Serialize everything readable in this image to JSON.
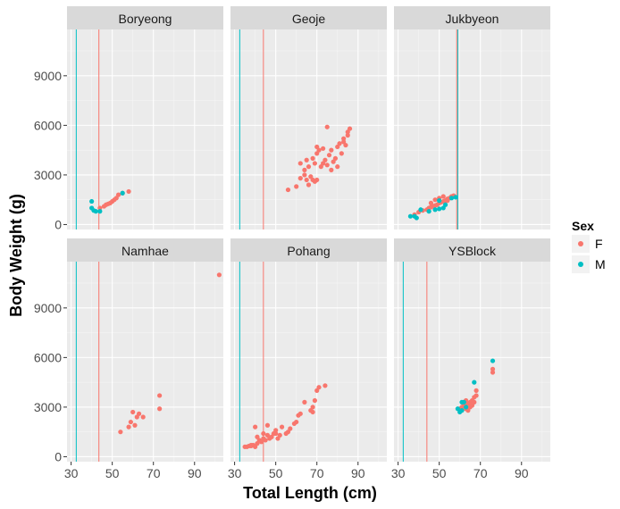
{
  "chart_data": {
    "type": "scatter",
    "layout": "facet_wrap 2x3",
    "xlabel": "Total Length (cm)",
    "ylabel": "Body Weight (g)",
    "xlim": [
      28,
      104
    ],
    "ylim": [
      -300,
      11800
    ],
    "x_ticks": [
      30,
      50,
      70,
      90
    ],
    "y_ticks": [
      0,
      3000,
      6000,
      9000
    ],
    "grid": true,
    "legend": {
      "title": "Sex",
      "position": "right",
      "entries": [
        {
          "label": "F",
          "color": "#F8766D"
        },
        {
          "label": "M",
          "color": "#00BFC4"
        }
      ]
    },
    "panels": [
      {
        "title": "Boryeong",
        "vlines": [
          {
            "x": 32.5,
            "color": "#00BFC4"
          },
          {
            "x": 43.5,
            "color": "#F8766D"
          }
        ],
        "F": [
          [
            44,
            1000
          ],
          [
            46,
            1100
          ],
          [
            47,
            1200
          ],
          [
            48,
            1250
          ],
          [
            49,
            1300
          ],
          [
            50,
            1400
          ],
          [
            51,
            1500
          ],
          [
            52,
            1600
          ],
          [
            53,
            1800
          ],
          [
            55,
            1900
          ],
          [
            58,
            2000
          ]
        ],
        "M": [
          [
            40,
            1400
          ],
          [
            40,
            1000
          ],
          [
            41,
            850
          ],
          [
            42,
            800
          ],
          [
            44,
            800
          ],
          [
            55,
            1900
          ]
        ]
      },
      {
        "title": "Geoje",
        "vlines": [
          {
            "x": 32.5,
            "color": "#00BFC4"
          },
          {
            "x": 44,
            "color": "#F8766D"
          }
        ],
        "F": [
          [
            56,
            2100
          ],
          [
            60,
            2300
          ],
          [
            62,
            2800
          ],
          [
            64,
            3000
          ],
          [
            65,
            2700
          ],
          [
            66,
            2400
          ],
          [
            67,
            2900
          ],
          [
            68,
            2700
          ],
          [
            69,
            2600
          ],
          [
            70,
            2700
          ],
          [
            62,
            3700
          ],
          [
            64,
            3300
          ],
          [
            65,
            3900
          ],
          [
            66,
            3500
          ],
          [
            68,
            4000
          ],
          [
            70,
            4300
          ],
          [
            71,
            4500
          ],
          [
            72,
            3500
          ],
          [
            73,
            3700
          ],
          [
            74,
            3900
          ],
          [
            75,
            3600
          ],
          [
            76,
            4200
          ],
          [
            77,
            4500
          ],
          [
            78,
            3800
          ],
          [
            79,
            4000
          ],
          [
            80,
            3500
          ],
          [
            81,
            4900
          ],
          [
            82,
            4300
          ],
          [
            83,
            5000
          ],
          [
            84,
            4800
          ],
          [
            85,
            5600
          ],
          [
            86,
            5800
          ],
          [
            75,
            5900
          ],
          [
            70,
            4700
          ],
          [
            73,
            4600
          ],
          [
            69,
            3700
          ],
          [
            77,
            3300
          ],
          [
            80,
            4700
          ],
          [
            83,
            5200
          ],
          [
            85,
            5400
          ]
        ],
        "M": []
      },
      {
        "title": "Jukbyeon",
        "vlines": [
          {
            "x": 59,
            "color": "#00BFC4"
          },
          {
            "x": 58.5,
            "color": "#F8766D"
          }
        ],
        "F": [
          [
            38,
            600
          ],
          [
            40,
            750
          ],
          [
            42,
            850
          ],
          [
            44,
            900
          ],
          [
            45,
            1000
          ],
          [
            46,
            1050
          ],
          [
            47,
            1100
          ],
          [
            48,
            1150
          ],
          [
            49,
            1200
          ],
          [
            50,
            1300
          ],
          [
            51,
            1350
          ],
          [
            52,
            1400
          ],
          [
            53,
            1450
          ],
          [
            54,
            1550
          ],
          [
            55,
            1600
          ],
          [
            56,
            1700
          ],
          [
            57,
            1750
          ],
          [
            50,
            1600
          ],
          [
            52,
            1700
          ],
          [
            48,
            1500
          ],
          [
            46,
            1300
          ],
          [
            54,
            1450
          ]
        ],
        "M": [
          [
            36,
            500
          ],
          [
            38,
            500
          ],
          [
            39,
            400
          ],
          [
            41,
            900
          ],
          [
            45,
            800
          ],
          [
            48,
            900
          ],
          [
            50,
            950
          ],
          [
            52,
            1000
          ],
          [
            53,
            1200
          ],
          [
            56,
            1600
          ],
          [
            58,
            1650
          ],
          [
            50,
            1450
          ]
        ]
      },
      {
        "title": "Namhae",
        "vlines": [
          {
            "x": 32.5,
            "color": "#00BFC4"
          },
          {
            "x": 43.5,
            "color": "#F8766D"
          }
        ],
        "F": [
          [
            54,
            1500
          ],
          [
            58,
            1800
          ],
          [
            59,
            2100
          ],
          [
            60,
            2700
          ],
          [
            61,
            1900
          ],
          [
            62,
            2400
          ],
          [
            63,
            2600
          ],
          [
            65,
            2400
          ],
          [
            73,
            3700
          ],
          [
            73,
            2900
          ],
          [
            102,
            11000
          ]
        ],
        "M": []
      },
      {
        "title": "Pohang",
        "vlines": [
          {
            "x": 32.5,
            "color": "#00BFC4"
          },
          {
            "x": 44,
            "color": "#F8766D"
          }
        ],
        "F": [
          [
            36,
            600
          ],
          [
            37,
            650
          ],
          [
            38,
            650
          ],
          [
            39,
            700
          ],
          [
            40,
            600
          ],
          [
            41,
            800
          ],
          [
            42,
            1000
          ],
          [
            43,
            900
          ],
          [
            44,
            1100
          ],
          [
            45,
            1000
          ],
          [
            46,
            1300
          ],
          [
            47,
            1100
          ],
          [
            48,
            1200
          ],
          [
            49,
            1400
          ],
          [
            50,
            1400
          ],
          [
            51,
            1100
          ],
          [
            52,
            1300
          ],
          [
            53,
            1800
          ],
          [
            55,
            1400
          ],
          [
            57,
            1700
          ],
          [
            59,
            2000
          ],
          [
            60,
            2100
          ],
          [
            61,
            2500
          ],
          [
            62,
            2600
          ],
          [
            64,
            3300
          ],
          [
            67,
            2800
          ],
          [
            68,
            3000
          ],
          [
            69,
            3400
          ],
          [
            70,
            4000
          ],
          [
            71,
            4200
          ],
          [
            74,
            4300
          ],
          [
            40,
            1800
          ],
          [
            46,
            1900
          ],
          [
            50,
            1600
          ],
          [
            44,
            1400
          ],
          [
            41,
            1200
          ],
          [
            38,
            700
          ],
          [
            35,
            600
          ],
          [
            56,
            1500
          ],
          [
            68,
            2700
          ]
        ],
        "M": []
      },
      {
        "title": "YSBlock",
        "vlines": [
          {
            "x": 32.5,
            "color": "#00BFC4"
          },
          {
            "x": 44,
            "color": "#F8766D"
          }
        ],
        "F": [
          [
            60,
            2900
          ],
          [
            61,
            3000
          ],
          [
            62,
            3100
          ],
          [
            63,
            2900
          ],
          [
            64,
            3200
          ],
          [
            65,
            3300
          ],
          [
            66,
            3100
          ],
          [
            67,
            3600
          ],
          [
            68,
            3700
          ],
          [
            68,
            4000
          ],
          [
            76,
            5100
          ],
          [
            76,
            5300
          ],
          [
            63,
            3400
          ],
          [
            65,
            3000
          ],
          [
            64,
            2800
          ],
          [
            66,
            3400
          ],
          [
            62,
            3300
          ],
          [
            67,
            3300
          ]
        ],
        "M": [
          [
            59,
            2900
          ],
          [
            60,
            2700
          ],
          [
            61,
            3300
          ],
          [
            62,
            3300
          ],
          [
            67,
            4500
          ],
          [
            76,
            5800
          ],
          [
            63,
            3000
          ],
          [
            61,
            2800
          ]
        ]
      }
    ]
  }
}
